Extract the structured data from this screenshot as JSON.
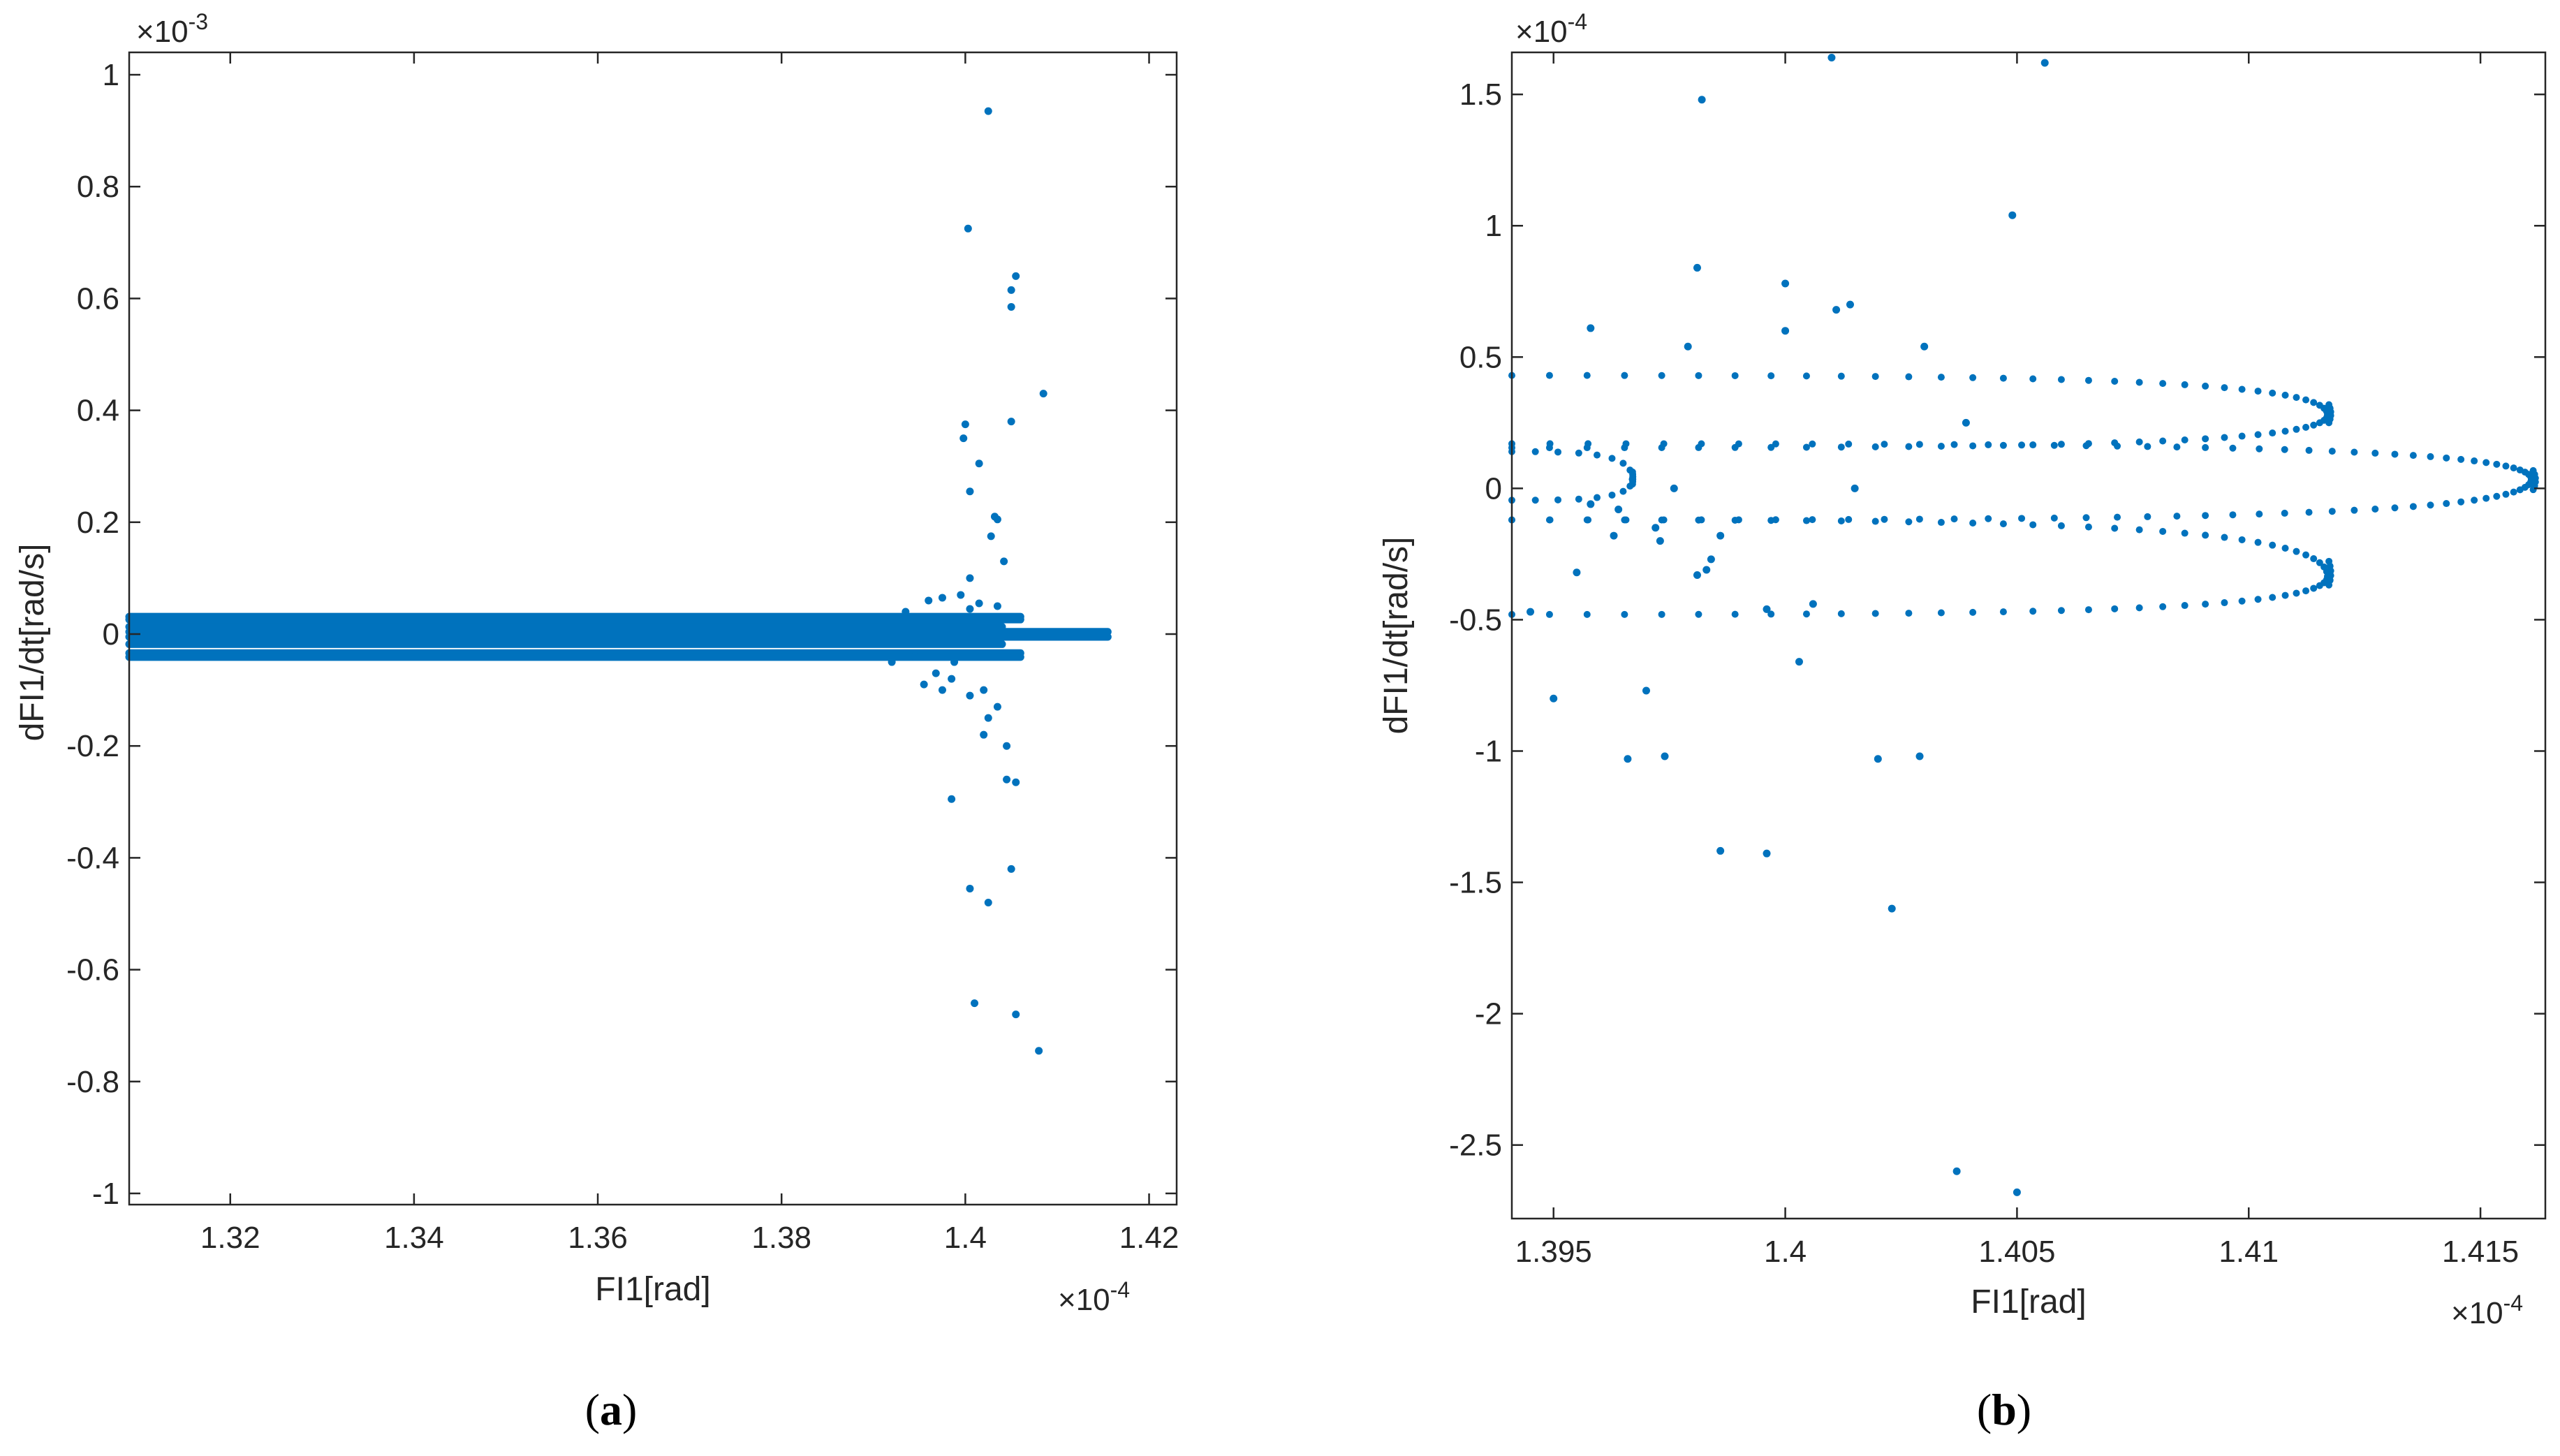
{
  "chart_data": [
    {
      "type": "scatter",
      "panel": "a",
      "panel_label": {
        "open": "(",
        "letter": "a",
        "close": ")"
      },
      "xlabel": "FI1[rad]",
      "ylabel": "dFI1/dt[rad/s]",
      "x_exponent_label": "×10",
      "x_exponent_power": "-4",
      "y_exponent_label": "×10",
      "y_exponent_power": "-3",
      "xlim": [
        1.309,
        1.423
      ],
      "ylim": [
        -1.02,
        1.04
      ],
      "x_ticks": [
        1.32,
        1.34,
        1.36,
        1.38,
        1.4,
        1.42
      ],
      "x_tick_labels": [
        "1.32",
        "1.34",
        "1.36",
        "1.38",
        "1.4",
        "1.42"
      ],
      "y_ticks": [
        -1,
        -0.8,
        -0.6,
        -0.4,
        -0.2,
        0,
        0.2,
        0.4,
        0.6,
        0.8,
        1
      ],
      "y_tick_labels": [
        "-1",
        "-0.8",
        "-0.6",
        "-0.4",
        "-0.2",
        "0",
        "0.2",
        "0.4",
        "0.6",
        "0.8",
        "1"
      ],
      "marker_color": "#0072BD",
      "band_rows": [
        {
          "y": 0.031,
          "x_start": 1.309,
          "x_end": 1.406
        },
        {
          "y": 0.026,
          "x_start": 1.309,
          "x_end": 1.406
        },
        {
          "y": 0.013,
          "x_start": 1.309,
          "x_end": 1.404
        },
        {
          "y": 0.004,
          "x_start": 1.309,
          "x_end": 1.4155
        },
        {
          "y": -0.005,
          "x_start": 1.309,
          "x_end": 1.4155
        },
        {
          "y": -0.018,
          "x_start": 1.309,
          "x_end": 1.404
        },
        {
          "y": -0.034,
          "x_start": 1.309,
          "x_end": 1.406
        },
        {
          "y": -0.041,
          "x_start": 1.309,
          "x_end": 1.406
        }
      ],
      "points": [
        [
          1.4025,
          0.935
        ],
        [
          1.4003,
          0.725
        ],
        [
          1.4055,
          0.64
        ],
        [
          1.405,
          0.615
        ],
        [
          1.405,
          0.585
        ],
        [
          1.4085,
          0.43
        ],
        [
          1.4,
          0.375
        ],
        [
          1.405,
          0.38
        ],
        [
          1.3998,
          0.35
        ],
        [
          1.4015,
          0.305
        ],
        [
          1.4005,
          0.255
        ],
        [
          1.4032,
          0.21
        ],
        [
          1.4035,
          0.205
        ],
        [
          1.4028,
          0.175
        ],
        [
          1.4042,
          0.13
        ],
        [
          1.4005,
          0.1
        ],
        [
          1.3975,
          0.065
        ],
        [
          1.396,
          0.06
        ],
        [
          1.3995,
          0.07
        ],
        [
          1.4015,
          0.055
        ],
        [
          1.4005,
          0.045
        ],
        [
          1.4035,
          0.05
        ],
        [
          1.3988,
          -0.05
        ],
        [
          1.3968,
          -0.07
        ],
        [
          1.3955,
          -0.09
        ],
        [
          1.3975,
          -0.1
        ],
        [
          1.4005,
          -0.11
        ],
        [
          1.402,
          -0.1
        ],
        [
          1.3985,
          -0.08
        ],
        [
          1.4025,
          -0.15
        ],
        [
          1.4035,
          -0.13
        ],
        [
          1.4045,
          -0.2
        ],
        [
          1.402,
          -0.18
        ],
        [
          1.4045,
          -0.26
        ],
        [
          1.4055,
          -0.265
        ],
        [
          1.3985,
          -0.295
        ],
        [
          1.4005,
          -0.455
        ],
        [
          1.4025,
          -0.48
        ],
        [
          1.405,
          -0.42
        ],
        [
          1.401,
          -0.66
        ],
        [
          1.4055,
          -0.68
        ],
        [
          1.408,
          -0.745
        ],
        [
          1.392,
          -0.05
        ],
        [
          1.3935,
          0.04
        ],
        [
          1.3945,
          -0.04
        ]
      ]
    },
    {
      "type": "scatter",
      "panel": "b",
      "panel_label": {
        "open": "(",
        "letter": "b",
        "close": ")"
      },
      "xlabel": "FI1[rad]",
      "ylabel": "dFI1/dt[rad/s]",
      "x_exponent_label": "×10",
      "x_exponent_power": "-4",
      "y_exponent_label": "×10",
      "y_exponent_power": "-4",
      "xlim": [
        1.3941,
        1.4164
      ],
      "ylim": [
        -2.78,
        1.66
      ],
      "x_ticks": [
        1.395,
        1.4,
        1.405,
        1.41,
        1.415
      ],
      "x_tick_labels": [
        "1.395",
        "1.4",
        "1.405",
        "1.41",
        "1.415"
      ],
      "y_ticks": [
        -2.5,
        -2,
        -1.5,
        -1,
        -0.5,
        0,
        0.5,
        1,
        1.5
      ],
      "y_tick_labels": [
        "-2.5",
        "-2",
        "-1.5",
        "-1",
        "-0.5",
        "0",
        "0.5",
        "1",
        "1.5"
      ],
      "marker_color": "#0072BD",
      "loops": [
        {
          "x_left": 1.3941,
          "x_tip": 1.4117,
          "y_top": 0.43,
          "y_bottom": 0.155,
          "y_tip": 0.28,
          "n": 34
        },
        {
          "x_left": 1.3941,
          "x_tip": 1.4117,
          "y_top": -0.12,
          "y_bottom": -0.48,
          "y_tip": -0.335,
          "n": 34
        },
        {
          "x_left": 1.3941,
          "x_tip": 1.4161,
          "y_top": 0.17,
          "y_bottom": -0.12,
          "y_tip": 0.035,
          "n": 42
        },
        {
          "x_left": 1.3941,
          "x_tip": 1.3967,
          "y_top": 0.14,
          "y_bottom": -0.045,
          "y_tip": 0.035,
          "n": 8
        }
      ],
      "points": [
        [
          1.401,
          1.64
        ],
        [
          1.4056,
          1.62
        ],
        [
          1.3982,
          1.48
        ],
        [
          1.4049,
          1.04
        ],
        [
          1.3981,
          0.84
        ],
        [
          1.4,
          0.78
        ],
        [
          1.4011,
          0.68
        ],
        [
          1.4014,
          0.7
        ],
        [
          1.3958,
          0.61
        ],
        [
          1.4,
          0.6
        ],
        [
          1.3979,
          0.54
        ],
        [
          1.403,
          0.54
        ],
        [
          1.4039,
          0.25
        ],
        [
          1.4015,
          0.0
        ],
        [
          1.3976,
          0.0
        ],
        [
          1.3955,
          -0.32
        ],
        [
          1.3984,
          -0.27
        ],
        [
          1.3983,
          -0.31
        ],
        [
          1.3981,
          -0.33
        ],
        [
          1.3973,
          -0.2
        ],
        [
          1.3963,
          -0.18
        ],
        [
          1.395,
          -0.8
        ],
        [
          1.3945,
          -0.47
        ],
        [
          1.397,
          -0.77
        ],
        [
          1.3966,
          -1.03
        ],
        [
          1.3974,
          -1.02
        ],
        [
          1.4003,
          -0.66
        ],
        [
          1.3996,
          -0.46
        ],
        [
          1.4006,
          -0.44
        ],
        [
          1.402,
          -1.03
        ],
        [
          1.4029,
          -1.02
        ],
        [
          1.3986,
          -1.38
        ],
        [
          1.3996,
          -1.39
        ],
        [
          1.4023,
          -1.6
        ],
        [
          1.4037,
          -2.6
        ],
        [
          1.405,
          -2.68
        ],
        [
          1.3958,
          -0.06
        ],
        [
          1.3964,
          -0.08
        ],
        [
          1.3972,
          -0.15
        ],
        [
          1.3986,
          -0.18
        ]
      ]
    }
  ]
}
